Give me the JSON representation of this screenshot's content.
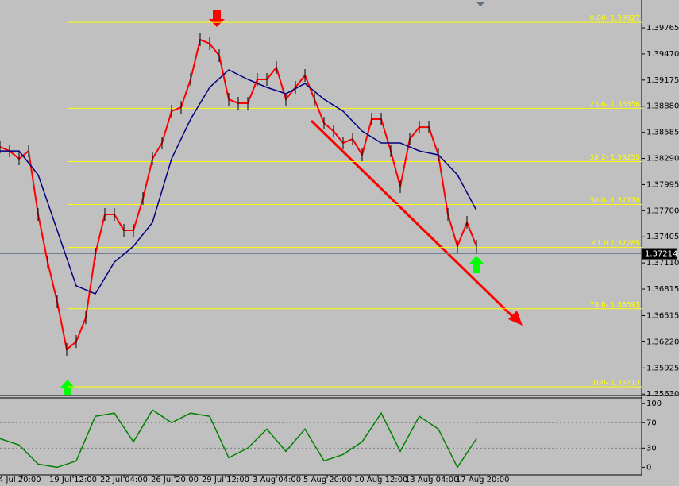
{
  "chart_data": [
    {
      "type": "line",
      "ylim": [
        1.35614,
        1.40079
      ],
      "yticks": [
        1.39765,
        {
          "value": 1.3947,
          "label": "1.39470"
        },
        1.39175,
        {
          "value": 1.3888,
          "label": "1.38880"
        },
        1.38585,
        {
          "value": 1.3829,
          "label": "1.38290"
        },
        1.37995,
        {
          "value": 1.377,
          "label": "1.37700"
        },
        1.37405,
        {
          "value": 1.3711,
          "label": "1.37110"
        },
        1.36815,
        1.36515,
        {
          "value": 1.3622,
          "label": "1.36220"
        },
        1.35925,
        {
          "value": 1.3563,
          "label": "1.35630"
        }
      ],
      "x_labels": [
        "4 Jul 20:00",
        "19 Jul 12:00",
        "22 Jul 04:00",
        "26 Jul 20:00",
        "29 Jul 12:00",
        "3 Aug 04:00",
        "5 Aug 20:00",
        "10 Aug 12:00",
        "13 Aug 04:00",
        "17 Aug 20:00"
      ],
      "current_price": 1.37214,
      "fib_levels": [
        {
          "value": 1.39827,
          "label": "0.00- 1.39827"
        },
        {
          "value": 1.38856,
          "label": "23.6- 1.38856"
        },
        {
          "value": 1.38255,
          "label": "38.2- 1.38255"
        },
        {
          "value": 1.3777,
          "label": "50.0- 1.37770"
        },
        {
          "value": 1.37285,
          "label": "61.8 1.37285"
        },
        {
          "value": 1.36593,
          "label": "78.6- 1.36593"
        },
        {
          "value": 1.35713,
          "label": "100- 1.35713"
        }
      ],
      "series": [
        {
          "color": "#ff0000",
          "values": [
            1.3842,
            1.38375,
            1.38286,
            1.38375,
            1.37658,
            1.3712,
            1.36672,
            1.36134,
            1.36223,
            1.36492,
            1.3721,
            1.37658,
            1.37658,
            1.37479,
            1.37479,
            1.37837,
            1.38286,
            1.38465,
            1.38824,
            1.38868,
            1.39182,
            1.39631,
            1.39586,
            1.39451,
            1.38958,
            1.38913,
            1.38913,
            1.39182,
            1.39182,
            1.39317,
            1.38958,
            1.39093,
            1.39227,
            1.38958,
            1.38689,
            1.38599,
            1.38465,
            1.3851,
            1.3833,
            1.38734,
            1.38734,
            1.38375,
            1.37972,
            1.3851,
            1.38644,
            1.38644,
            1.3833,
            1.37658,
            1.37299,
            1.37568,
            1.37299
          ]
        },
        {
          "color": "#000080",
          "values": [
            1.38375,
            1.38375,
            1.38106,
            1.37479,
            1.36851,
            1.36761,
            1.3712,
            1.37299,
            1.37568,
            1.38286,
            1.38734,
            1.39093,
            1.3929,
            1.39182,
            1.39093,
            1.39021,
            1.39137,
            1.38958,
            1.38824,
            1.38599,
            1.38465,
            1.38465,
            1.38375,
            1.3833,
            1.38106,
            1.37703
          ]
        }
      ]
    },
    {
      "type": "line",
      "ylim": [
        -12,
        109
      ],
      "yticks": [
        100,
        70,
        30,
        0
      ],
      "series": [
        {
          "color": "#008000",
          "values": [
            45,
            35,
            5,
            0,
            10,
            80,
            85,
            40,
            90,
            70,
            85,
            80,
            15,
            30,
            60,
            25,
            60,
            10,
            20,
            40,
            85,
            25,
            80,
            60,
            0,
            45
          ]
        }
      ]
    }
  ]
}
